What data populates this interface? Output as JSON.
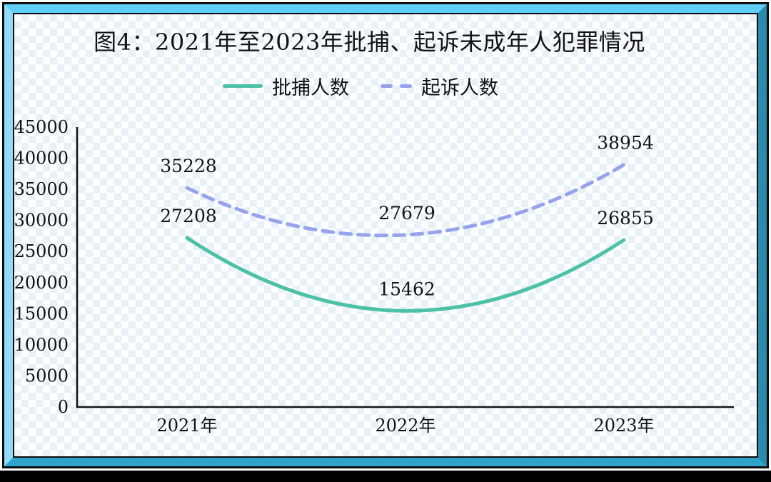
{
  "colors": {
    "accent_teal": "#4CC1A7",
    "accent_periwinkle": "#97A2EC",
    "axis": "#161616",
    "text": "#121212",
    "frame_top": "#5FCFF5",
    "frame_left": "#8FDBF8",
    "frame_bottom": "#2FA3C9",
    "frame_right": "#2B8BAA",
    "pattern_diamond": "#e8f1f8"
  },
  "chart_data": {
    "type": "line",
    "title": "图4：2021年至2023年批捕、起诉未成年人犯罪情况",
    "categories": [
      "2021年",
      "2022年",
      "2023年"
    ],
    "series": [
      {
        "name": "批捕人数",
        "line_style": "solid",
        "color": "#4CC1A7",
        "values": [
          27208,
          15462,
          26855
        ]
      },
      {
        "name": "起诉人数",
        "line_style": "dashed",
        "color": "#97A2EC",
        "values": [
          35228,
          27679,
          38954
        ]
      }
    ],
    "ylim": [
      0,
      45000
    ],
    "yticks": [
      0,
      5000,
      10000,
      15000,
      20000,
      25000,
      30000,
      35000,
      40000,
      45000
    ],
    "xlabel": "",
    "ylabel": "",
    "grid": false,
    "legend_position": "top",
    "data_labels": true,
    "curve": "smooth"
  }
}
